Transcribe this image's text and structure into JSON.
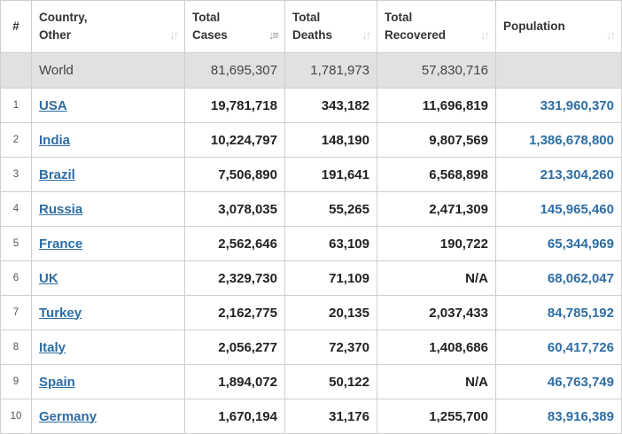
{
  "columns": {
    "rank": "#",
    "country": [
      "Country,",
      "Other"
    ],
    "cases": [
      "Total",
      "Cases"
    ],
    "deaths": [
      "Total",
      "Deaths"
    ],
    "recovered": [
      "Total",
      "Recovered"
    ],
    "population": "Population"
  },
  "sort_icons": {
    "country": "sort-icon",
    "cases": "sort-desc-icon",
    "deaths": "sort-icon",
    "recovered": "sort-icon",
    "population": "sort-icon"
  },
  "world": {
    "name": "World",
    "cases": "81,695,307",
    "deaths": "1,781,973",
    "recovered": "57,830,716",
    "population": ""
  },
  "rows": [
    {
      "rank": "1",
      "country": "USA",
      "cases": "19,781,718",
      "deaths": "343,182",
      "recovered": "11,696,819",
      "population": "331,960,370"
    },
    {
      "rank": "2",
      "country": "India",
      "cases": "10,224,797",
      "deaths": "148,190",
      "recovered": "9,807,569",
      "population": "1,386,678,800"
    },
    {
      "rank": "3",
      "country": "Brazil",
      "cases": "7,506,890",
      "deaths": "191,641",
      "recovered": "6,568,898",
      "population": "213,304,260"
    },
    {
      "rank": "4",
      "country": "Russia",
      "cases": "3,078,035",
      "deaths": "55,265",
      "recovered": "2,471,309",
      "population": "145,965,460"
    },
    {
      "rank": "5",
      "country": "France",
      "cases": "2,562,646",
      "deaths": "63,109",
      "recovered": "190,722",
      "population": "65,344,969"
    },
    {
      "rank": "6",
      "country": "UK",
      "cases": "2,329,730",
      "deaths": "71,109",
      "recovered": "N/A",
      "population": "68,062,047"
    },
    {
      "rank": "7",
      "country": "Turkey",
      "cases": "2,162,775",
      "deaths": "20,135",
      "recovered": "2,037,433",
      "population": "84,785,192"
    },
    {
      "rank": "8",
      "country": "Italy",
      "cases": "2,056,277",
      "deaths": "72,370",
      "recovered": "1,408,686",
      "population": "60,417,726"
    },
    {
      "rank": "9",
      "country": "Spain",
      "cases": "1,894,072",
      "deaths": "50,122",
      "recovered": "N/A",
      "population": "46,763,749"
    },
    {
      "rank": "10",
      "country": "Germany",
      "cases": "1,670,194",
      "deaths": "31,176",
      "recovered": "1,255,700",
      "population": "83,916,389"
    }
  ]
}
